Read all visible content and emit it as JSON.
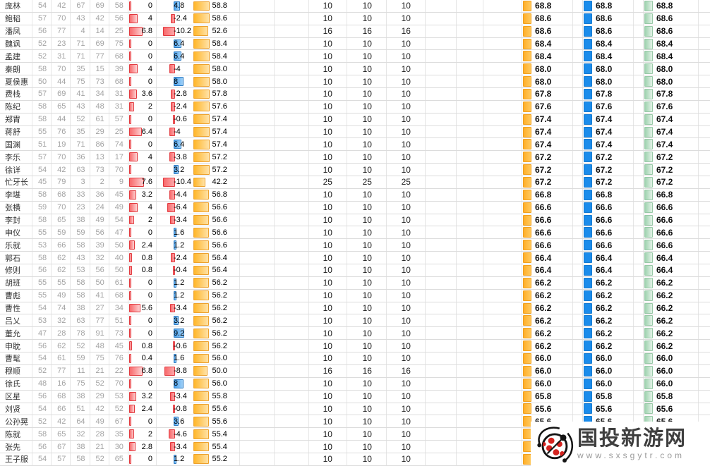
{
  "watermark": {
    "title": "国投新游网",
    "url": "www.sxsgytr.com"
  },
  "colors": {
    "bar_red": "#f8696b",
    "bar_blue": "#47a0ee",
    "bar_orange": "#ffb62a",
    "square_orange": "#ffaf29",
    "square_blue": "#1b8ceb",
    "square_green": "#9fd2af",
    "stat_text": "#a3a3a3",
    "gridline": "#dcdcdc"
  },
  "table": {
    "rows": [
      {
        "name": "庞林",
        "stats": [
          54,
          42,
          67,
          69,
          58
        ],
        "gain": 0,
        "delta": 4.8,
        "score": "58.8",
        "mid": [
          10,
          10,
          10
        ],
        "final": [
          "68.8",
          "68.8",
          "68.8"
        ]
      },
      {
        "name": "鲍韬",
        "stats": [
          57,
          70,
          43,
          42,
          56
        ],
        "gain": 4,
        "delta": -2.4,
        "score": "58.6",
        "mid": [
          10,
          10,
          10
        ],
        "final": [
          "68.6",
          "68.6",
          "68.6"
        ]
      },
      {
        "name": "潘凤",
        "stats": [
          56,
          77,
          4,
          14,
          25
        ],
        "gain": 6.8,
        "delta": -10.2,
        "score": "52.6",
        "mid": [
          16,
          16,
          16
        ],
        "final": [
          "68.6",
          "68.6",
          "68.6"
        ]
      },
      {
        "name": "魏讽",
        "stats": [
          52,
          23,
          71,
          69,
          75
        ],
        "gain": 0,
        "delta": 6.4,
        "score": "58.4",
        "mid": [
          10,
          10,
          10
        ],
        "final": [
          "68.4",
          "68.4",
          "68.4"
        ]
      },
      {
        "name": "孟建",
        "stats": [
          52,
          31,
          71,
          77,
          68
        ],
        "gain": 0,
        "delta": 6.4,
        "score": "58.4",
        "mid": [
          10,
          10,
          10
        ],
        "final": [
          "68.4",
          "68.4",
          "68.4"
        ]
      },
      {
        "name": "秦朗",
        "stats": [
          58,
          70,
          35,
          15,
          39
        ],
        "gain": 4,
        "delta": -4,
        "score": "58.0",
        "mid": [
          10,
          10,
          10
        ],
        "final": [
          "68.0",
          "68.0",
          "68.0"
        ]
      },
      {
        "name": "夏侯惠",
        "stats": [
          50,
          44,
          75,
          73,
          68
        ],
        "gain": 0,
        "delta": 8,
        "score": "58.0",
        "mid": [
          10,
          10,
          10
        ],
        "final": [
          "68.0",
          "68.0",
          "68.0"
        ]
      },
      {
        "name": "费栈",
        "stats": [
          57,
          69,
          41,
          34,
          31
        ],
        "gain": 3.6,
        "delta": -2.8,
        "score": "57.8",
        "mid": [
          10,
          10,
          10
        ],
        "final": [
          "67.8",
          "67.8",
          "67.8"
        ]
      },
      {
        "name": "陈纪",
        "stats": [
          58,
          65,
          43,
          48,
          31
        ],
        "gain": 2,
        "delta": -2.4,
        "score": "57.6",
        "mid": [
          10,
          10,
          10
        ],
        "final": [
          "67.6",
          "67.6",
          "67.6"
        ]
      },
      {
        "name": "郑胄",
        "stats": [
          58,
          44,
          52,
          61,
          57
        ],
        "gain": 0,
        "delta": -0.6,
        "score": "57.4",
        "mid": [
          10,
          10,
          10
        ],
        "final": [
          "67.4",
          "67.4",
          "67.4"
        ]
      },
      {
        "name": "蒋舒",
        "stats": [
          55,
          76,
          35,
          29,
          25
        ],
        "gain": 6.4,
        "delta": -4,
        "score": "57.4",
        "mid": [
          10,
          10,
          10
        ],
        "final": [
          "67.4",
          "67.4",
          "67.4"
        ]
      },
      {
        "name": "国渊",
        "stats": [
          51,
          19,
          71,
          86,
          74
        ],
        "gain": 0,
        "delta": 6.4,
        "score": "57.4",
        "mid": [
          10,
          10,
          10
        ],
        "final": [
          "67.4",
          "67.4",
          "67.4"
        ]
      },
      {
        "name": "李乐",
        "stats": [
          57,
          70,
          36,
          13,
          17
        ],
        "gain": 4,
        "delta": -3.8,
        "score": "57.2",
        "mid": [
          10,
          10,
          10
        ],
        "final": [
          "67.2",
          "67.2",
          "67.2"
        ]
      },
      {
        "name": "徐详",
        "stats": [
          54,
          42,
          63,
          73,
          70
        ],
        "gain": 0,
        "delta": 3.2,
        "score": "57.2",
        "mid": [
          10,
          10,
          10
        ],
        "final": [
          "67.2",
          "67.2",
          "67.2"
        ]
      },
      {
        "name": "忙牙长",
        "stats": [
          45,
          79,
          3,
          2,
          9
        ],
        "gain": 7.6,
        "delta": -10.4,
        "score": "42.2",
        "mid": [
          25,
          25,
          25
        ],
        "final": [
          "67.2",
          "67.2",
          "67.2"
        ]
      },
      {
        "name": "李堪",
        "stats": [
          58,
          68,
          33,
          36,
          45
        ],
        "gain": 3.2,
        "delta": -4.4,
        "score": "56.8",
        "mid": [
          10,
          10,
          10
        ],
        "final": [
          "66.8",
          "66.8",
          "66.8"
        ]
      },
      {
        "name": "张横",
        "stats": [
          59,
          70,
          23,
          24,
          49
        ],
        "gain": 4,
        "delta": -6.4,
        "score": "56.6",
        "mid": [
          10,
          10,
          10
        ],
        "final": [
          "66.6",
          "66.6",
          "66.6"
        ]
      },
      {
        "name": "李封",
        "stats": [
          58,
          65,
          38,
          49,
          54
        ],
        "gain": 2,
        "delta": -3.4,
        "score": "56.6",
        "mid": [
          10,
          10,
          10
        ],
        "final": [
          "66.6",
          "66.6",
          "66.6"
        ]
      },
      {
        "name": "申仪",
        "stats": [
          55,
          59,
          59,
          56,
          47
        ],
        "gain": 0,
        "delta": 1.6,
        "score": "56.6",
        "mid": [
          10,
          10,
          10
        ],
        "final": [
          "66.6",
          "66.6",
          "66.6"
        ]
      },
      {
        "name": "乐就",
        "stats": [
          53,
          66,
          58,
          39,
          50
        ],
        "gain": 2.4,
        "delta": 1.2,
        "score": "56.6",
        "mid": [
          10,
          10,
          10
        ],
        "final": [
          "66.6",
          "66.6",
          "66.6"
        ]
      },
      {
        "name": "郭石",
        "stats": [
          58,
          62,
          43,
          32,
          40
        ],
        "gain": 0.8,
        "delta": -2.4,
        "score": "56.4",
        "mid": [
          10,
          10,
          10
        ],
        "final": [
          "66.4",
          "66.4",
          "66.4"
        ]
      },
      {
        "name": "修则",
        "stats": [
          56,
          62,
          53,
          56,
          50
        ],
        "gain": 0.8,
        "delta": -0.4,
        "score": "56.4",
        "mid": [
          10,
          10,
          10
        ],
        "final": [
          "66.4",
          "66.4",
          "66.4"
        ]
      },
      {
        "name": "胡班",
        "stats": [
          55,
          55,
          58,
          50,
          61
        ],
        "gain": 0,
        "delta": 1.2,
        "score": "56.2",
        "mid": [
          10,
          10,
          10
        ],
        "final": [
          "66.2",
          "66.2",
          "66.2"
        ]
      },
      {
        "name": "曹彪",
        "stats": [
          55,
          49,
          58,
          41,
          68
        ],
        "gain": 0,
        "delta": 1.2,
        "score": "56.2",
        "mid": [
          10,
          10,
          10
        ],
        "final": [
          "66.2",
          "66.2",
          "66.2"
        ]
      },
      {
        "name": "曹性",
        "stats": [
          54,
          74,
          38,
          27,
          34
        ],
        "gain": 5.6,
        "delta": -3.4,
        "score": "56.2",
        "mid": [
          10,
          10,
          10
        ],
        "final": [
          "66.2",
          "66.2",
          "66.2"
        ]
      },
      {
        "name": "吕乂",
        "stats": [
          53,
          32,
          63,
          77,
          51
        ],
        "gain": 0,
        "delta": 3.2,
        "score": "56.2",
        "mid": [
          10,
          10,
          10
        ],
        "final": [
          "66.2",
          "66.2",
          "66.2"
        ]
      },
      {
        "name": "董允",
        "stats": [
          47,
          28,
          78,
          91,
          73
        ],
        "gain": 0,
        "delta": 9.2,
        "score": "56.2",
        "mid": [
          10,
          10,
          10
        ],
        "final": [
          "66.2",
          "66.2",
          "66.2"
        ]
      },
      {
        "name": "申耽",
        "stats": [
          56,
          62,
          52,
          48,
          45
        ],
        "gain": 0.8,
        "delta": -0.6,
        "score": "56.2",
        "mid": [
          10,
          10,
          10
        ],
        "final": [
          "66.2",
          "66.2",
          "66.2"
        ]
      },
      {
        "name": "曹髦",
        "stats": [
          54,
          61,
          59,
          75,
          76
        ],
        "gain": 0.4,
        "delta": 1.6,
        "score": "56.0",
        "mid": [
          10,
          10,
          10
        ],
        "final": [
          "66.0",
          "66.0",
          "66.0"
        ]
      },
      {
        "name": "穆顺",
        "stats": [
          52,
          77,
          11,
          21,
          22
        ],
        "gain": 6.8,
        "delta": -8.8,
        "score": "50.0",
        "mid": [
          16,
          16,
          16
        ],
        "final": [
          "66.0",
          "66.0",
          "66.0"
        ]
      },
      {
        "name": "徐氏",
        "stats": [
          48,
          16,
          75,
          52,
          70
        ],
        "gain": 0,
        "delta": 8,
        "score": "56.0",
        "mid": [
          10,
          10,
          10
        ],
        "final": [
          "66.0",
          "66.0",
          "66.0"
        ]
      },
      {
        "name": "区星",
        "stats": [
          56,
          68,
          38,
          29,
          53
        ],
        "gain": 3.2,
        "delta": -3.4,
        "score": "55.8",
        "mid": [
          10,
          10,
          10
        ],
        "final": [
          "65.8",
          "65.8",
          "65.8"
        ]
      },
      {
        "name": "刘贤",
        "stats": [
          54,
          66,
          51,
          42,
          52
        ],
        "gain": 2.4,
        "delta": -0.8,
        "score": "55.6",
        "mid": [
          10,
          10,
          10
        ],
        "final": [
          "65.6",
          "65.6",
          "65.6"
        ]
      },
      {
        "name": "公孙晃",
        "stats": [
          52,
          42,
          64,
          49,
          67
        ],
        "gain": 0,
        "delta": 3.6,
        "score": "55.6",
        "mid": [
          10,
          10,
          10
        ],
        "final": [
          "65.6",
          "65.6",
          "65.6"
        ]
      },
      {
        "name": "陈就",
        "stats": [
          58,
          65,
          32,
          28,
          35
        ],
        "gain": 2,
        "delta": -4.6,
        "score": "55.4",
        "mid": [
          10,
          10,
          10
        ],
        "final": [
          null,
          null,
          null
        ]
      },
      {
        "name": "张先",
        "stats": [
          56,
          67,
          38,
          21,
          30
        ],
        "gain": 2.8,
        "delta": -3.4,
        "score": "55.4",
        "mid": [
          10,
          10,
          10
        ],
        "final": [
          null,
          null,
          null
        ]
      },
      {
        "name": "王子服",
        "stats": [
          54,
          57,
          58,
          52,
          65
        ],
        "gain": 0,
        "delta": 1.2,
        "score": "55.2",
        "mid": [
          10,
          10,
          10
        ],
        "final": [
          null,
          null,
          null
        ]
      }
    ]
  }
}
